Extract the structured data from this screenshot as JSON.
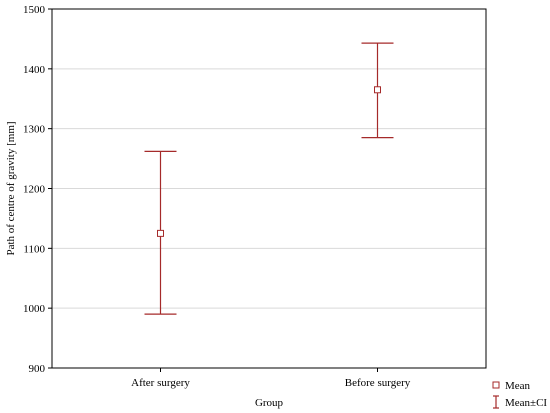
{
  "chart_data": {
    "type": "errorbar",
    "title": "",
    "xlabel": "Group",
    "ylabel": "Path of centre of gravity [mm]",
    "categories": [
      "After surgery",
      "Before surgery"
    ],
    "series": [
      {
        "name": "Mean",
        "mean": [
          1125,
          1365
        ],
        "ci_lower": [
          990,
          1285
        ],
        "ci_upper": [
          1262,
          1443
        ]
      }
    ],
    "ylim": [
      900,
      1500
    ],
    "yticks": [
      900,
      1000,
      1100,
      1200,
      1300,
      1400,
      1500
    ],
    "grid": true,
    "legend": {
      "position": "bottom-right",
      "items": [
        "Mean",
        "Mean±CI"
      ]
    },
    "colors": {
      "series": "#a52a2a",
      "grid": "#d9d9d9",
      "axis": "#000000"
    }
  }
}
